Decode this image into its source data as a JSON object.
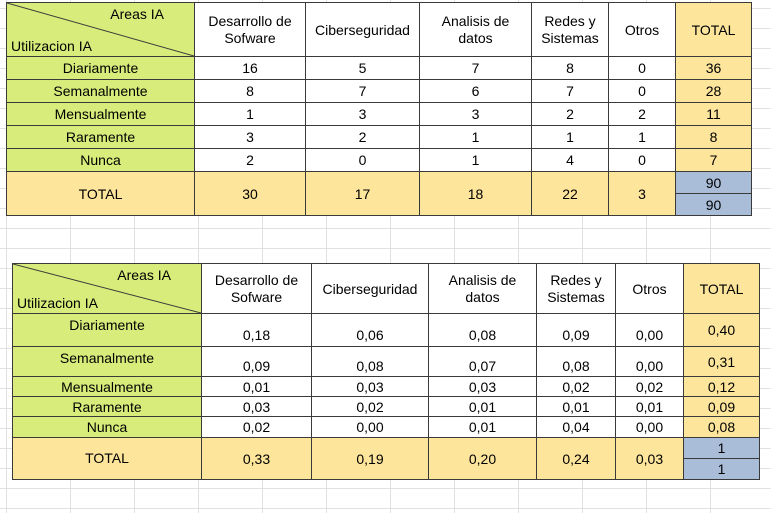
{
  "corner_top": "Areas  IA",
  "corner_bottom": "Utilizacion IA",
  "headers": [
    "Desarrollo de Sofware",
    "Ciberseguridad",
    "Analisis de datos",
    "Redes y Sistemas",
    "Otros",
    "TOTAL"
  ],
  "header_lines": [
    [
      "Desarrollo de",
      "Sofware"
    ],
    [
      "Ciberseguridad"
    ],
    [
      "Analisis de",
      "datos"
    ],
    [
      "Redes y",
      "Sistemas"
    ],
    [
      "Otros"
    ],
    [
      "TOTAL"
    ]
  ],
  "rows": [
    "Diariamente",
    "Semanalmente",
    "Mensualmente",
    "Raramente",
    "Nunca"
  ],
  "total_label": "TOTAL",
  "counts": {
    "values": [
      [
        "16",
        "5",
        "7",
        "8",
        "0",
        "36"
      ],
      [
        "8",
        "7",
        "6",
        "7",
        "0",
        "28"
      ],
      [
        "1",
        "3",
        "3",
        "2",
        "2",
        "11"
      ],
      [
        "3",
        "2",
        "1",
        "1",
        "1",
        "8"
      ],
      [
        "2",
        "0",
        "1",
        "4",
        "0",
        "7"
      ]
    ],
    "totals": [
      "30",
      "17",
      "18",
      "22",
      "3"
    ],
    "grand_total": [
      "90",
      "90"
    ]
  },
  "proportions": {
    "values": [
      [
        "0,18",
        "0,06",
        "0,08",
        "0,09",
        "0,00",
        "0,40"
      ],
      [
        "0,09",
        "0,08",
        "0,07",
        "0,08",
        "0,00",
        "0,31"
      ],
      [
        "0,01",
        "0,03",
        "0,03",
        "0,02",
        "0,02",
        "0,12"
      ],
      [
        "0,03",
        "0,02",
        "0,01",
        "0,01",
        "0,01",
        "0,09"
      ],
      [
        "0,02",
        "0,00",
        "0,01",
        "0,04",
        "0,00",
        "0,08"
      ]
    ],
    "totals": [
      "0,33",
      "0,19",
      "0,20",
      "0,24",
      "0,03"
    ],
    "grand_total": [
      "1",
      "1"
    ]
  },
  "colors": {
    "label_green": "#d7ec7a",
    "total_orange": "#fde59c",
    "grand_blue": "#a9bcd8",
    "grid_border": "#3a3a3a"
  }
}
